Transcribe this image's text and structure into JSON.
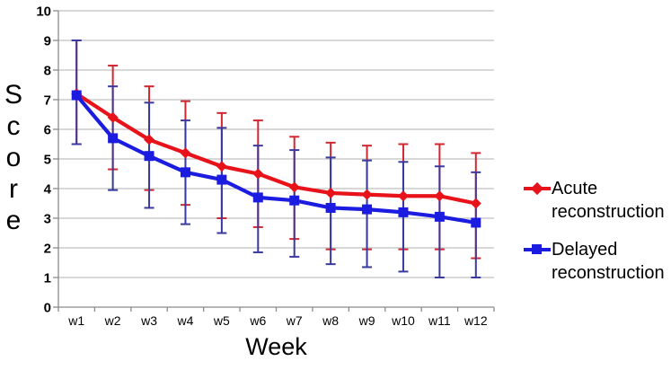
{
  "chart_data": {
    "type": "line",
    "title": "",
    "xlabel": "Week",
    "ylabel": "Score",
    "categories": [
      "w1",
      "w2",
      "w3",
      "w4",
      "w5",
      "w6",
      "w7",
      "w8",
      "w9",
      "w10",
      "w11",
      "w12"
    ],
    "ylim": [
      0,
      10
    ],
    "yticks": [
      "0",
      "1",
      "2",
      "3",
      "4",
      "5",
      "6",
      "7",
      "8",
      "9",
      "10"
    ],
    "grid": "horizontal",
    "legend_position": "right-middle",
    "error_bars": true,
    "axis_color": "#8c8c8c",
    "grid_color": "#b2b2b2",
    "text_color": "#000000",
    "series": [
      {
        "name": "Acute reconstruction",
        "marker": "diamond",
        "color": "#e8131a",
        "error_color": "#d02730",
        "values": [
          7.2,
          6.4,
          5.65,
          5.2,
          4.75,
          4.5,
          4.05,
          3.85,
          3.8,
          3.75,
          3.75,
          3.5
        ],
        "error_high": [
          9.0,
          8.15,
          7.45,
          6.95,
          6.55,
          6.3,
          5.75,
          5.55,
          5.45,
          5.5,
          5.5,
          5.2
        ],
        "error_low": [
          5.5,
          4.65,
          3.95,
          3.45,
          3.0,
          2.7,
          2.3,
          1.95,
          1.95,
          1.95,
          1.95,
          1.65
        ]
      },
      {
        "name": "Delayed reconstruction",
        "marker": "square",
        "color": "#1c1ce0",
        "error_color": "#3a3a9e",
        "values": [
          7.15,
          5.7,
          5.1,
          4.55,
          4.3,
          3.7,
          3.6,
          3.35,
          3.3,
          3.2,
          3.05,
          2.85
        ],
        "error_high": [
          9.0,
          7.45,
          6.9,
          6.3,
          6.05,
          5.45,
          5.3,
          5.05,
          4.95,
          4.9,
          4.75,
          4.55
        ],
        "error_low": [
          5.5,
          3.95,
          3.35,
          2.8,
          2.5,
          1.85,
          1.7,
          1.45,
          1.35,
          1.2,
          1.0,
          1.0
        ]
      }
    ]
  }
}
